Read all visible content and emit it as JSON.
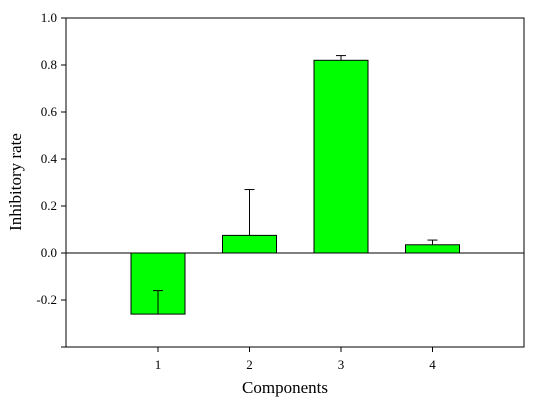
{
  "chart_data": {
    "type": "bar",
    "categories": [
      "1",
      "2",
      "3",
      "4"
    ],
    "values": [
      -0.26,
      0.075,
      0.82,
      0.035
    ],
    "errors": [
      0.1,
      0.195,
      0.02,
      0.02
    ],
    "error_direction": [
      "up",
      "up",
      "up",
      "up"
    ],
    "title": "",
    "xlabel": "Components",
    "ylabel": "Inhibitory rate",
    "ylim": [
      -0.4,
      1.0
    ],
    "yticks": [
      -0.2,
      0.0,
      0.2,
      0.4,
      0.6,
      0.8,
      1.0
    ],
    "ytick_labels": [
      "-0.2",
      "0.0",
      "0.2",
      "0.4",
      "0.6",
      "0.8",
      "1.0"
    ],
    "bar_color": "#00ff00",
    "bar_edge_color": "#000000",
    "grid": false,
    "zero_line": true,
    "legend": "none"
  }
}
